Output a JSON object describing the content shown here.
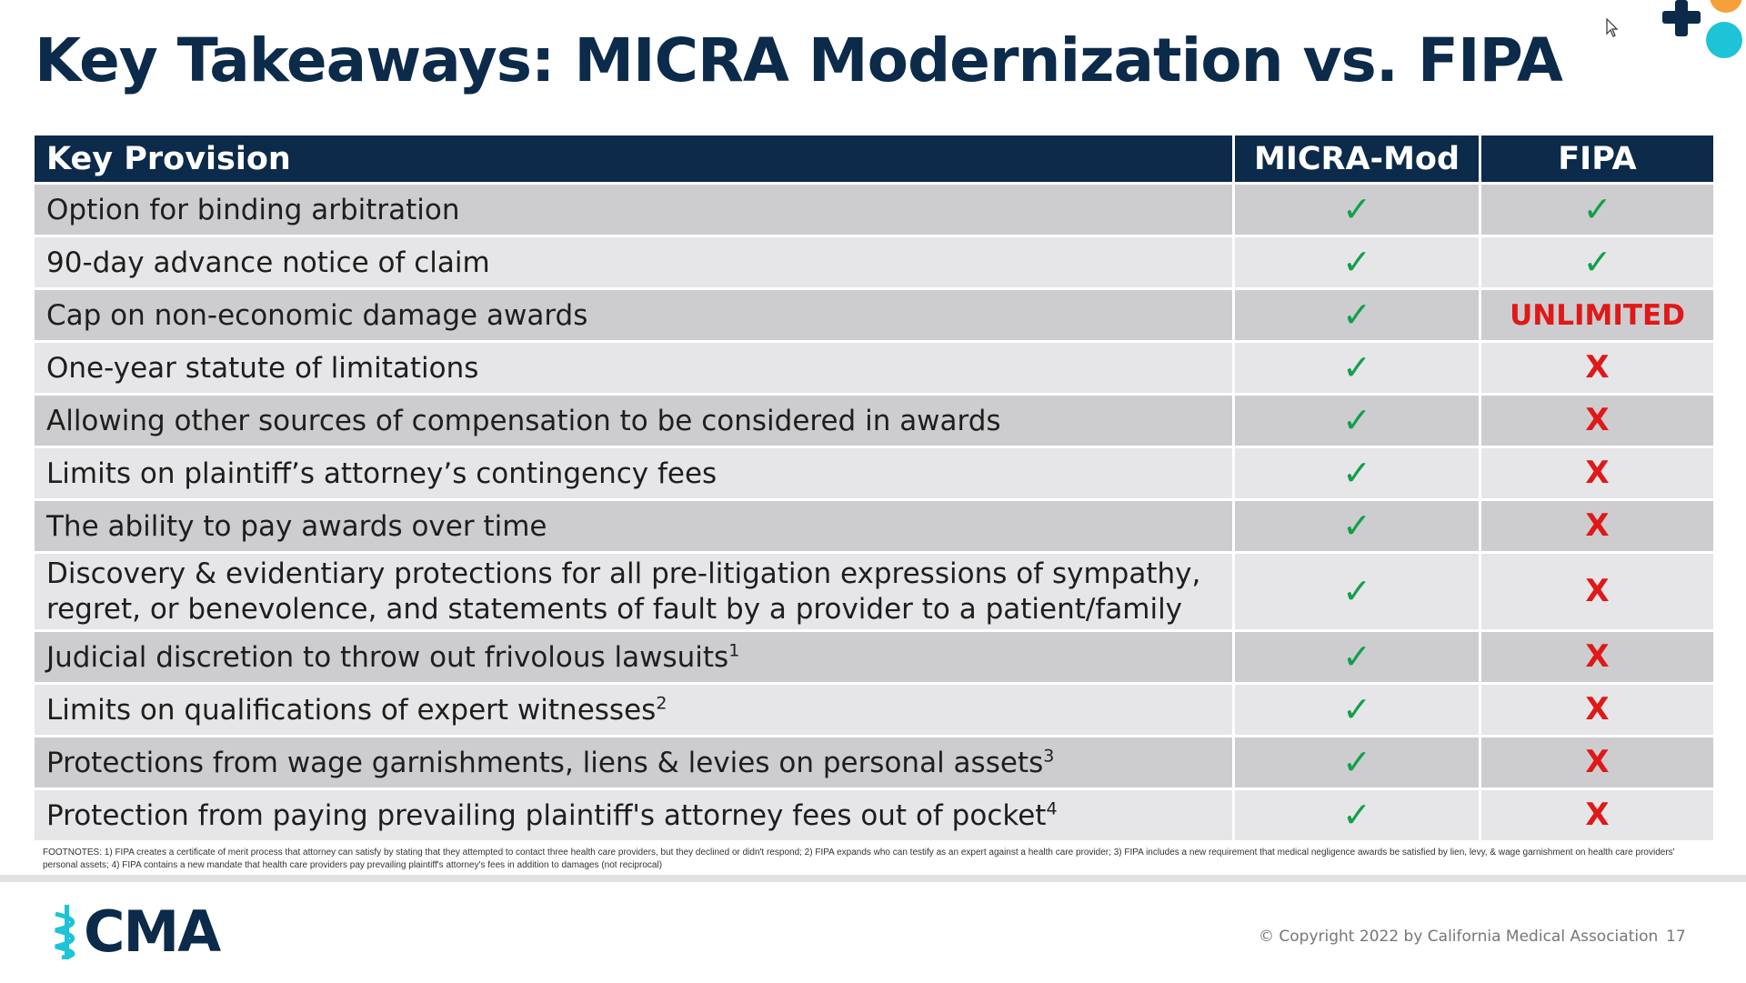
{
  "title": "Key Takeaways: MICRA Modernization vs. FIPA",
  "table": {
    "headers": [
      "Key Provision",
      "MICRA-Mod",
      "FIPA"
    ],
    "rows": [
      {
        "provision": "Option for binding arbitration",
        "note": "",
        "micra": "check",
        "fipa": "check"
      },
      {
        "provision": "90-day advance notice of claim",
        "note": "",
        "micra": "check",
        "fipa": "check"
      },
      {
        "provision": "Cap on non-economic damage awards",
        "note": "",
        "micra": "check",
        "fipa": "UNLIMITED"
      },
      {
        "provision": "One-year statute of limitations",
        "note": "",
        "micra": "check",
        "fipa": "X"
      },
      {
        "provision": "Allowing other sources of compensation to be considered in awards",
        "note": "",
        "micra": "check",
        "fipa": "X"
      },
      {
        "provision": "Limits on plaintiff’s attorney’s contingency fees",
        "note": "",
        "micra": "check",
        "fipa": "X"
      },
      {
        "provision": "The ability to pay awards over time",
        "note": "",
        "micra": "check",
        "fipa": "X"
      },
      {
        "provision": "Discovery & evidentiary protections for all pre-litigation expressions of sympathy, regret, or benevolence, and statements of fault by a provider to a patient/family",
        "note": "",
        "micra": "check",
        "fipa": "X"
      },
      {
        "provision": "Judicial discretion to throw out frivolous lawsuits",
        "note": "1",
        "micra": "check",
        "fipa": "X"
      },
      {
        "provision": "Limits on qualifications of expert witnesses",
        "note": "2",
        "micra": "check",
        "fipa": "X"
      },
      {
        "provision": "Protections from wage garnishments, liens & levies on personal assets",
        "note": "3",
        "micra": "check",
        "fipa": "X"
      },
      {
        "provision": "Protection from paying prevailing plaintiff's attorney fees out of pocket",
        "note": "4",
        "micra": "check",
        "fipa": "X"
      }
    ]
  },
  "symbols": {
    "check": "✓",
    "x": "X",
    "check_color": "#12a04a",
    "x_color": "#e01818"
  },
  "footnotes": "FOOTNOTES: 1) FIPA creates a certificate of merit process that attorney can satisfy by stating that they attempted to contact three health care providers, but they declined or didn't respond; 2) FIPA expands who can testify as an expert against a health care provider; 3) FIPA includes a new requirement that medical negligence awards be satisfied by lien, levy, & wage garnishment on health care providers' personal assets; 4) FIPA contains a new mandate that health care providers pay prevailing plaintiff's attorney's fees in addition to damages (not reciprocal)",
  "logo": {
    "text": "CMA",
    "icon": "caduceus-icon"
  },
  "copyright": "© Copyright 2022 by California Medical Association",
  "page_number": "17",
  "colors": {
    "navy": "#0c2a4a",
    "row_dark": "#cdcdd0",
    "row_light": "#e6e6e8",
    "accent_orange": "#f5a03a",
    "accent_teal": "#1ec3d8"
  }
}
